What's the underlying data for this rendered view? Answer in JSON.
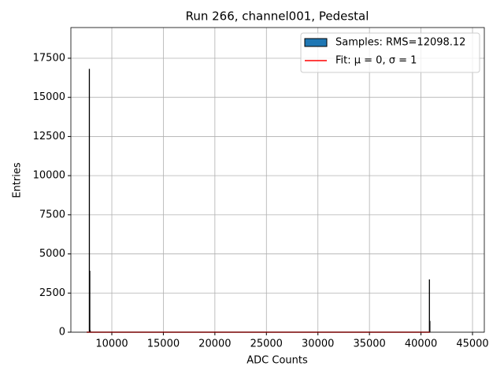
{
  "chart_data": {
    "type": "histogram",
    "title": "Run 266, channel001, Pedestal",
    "xlabel": "ADC Counts",
    "ylabel": "Entries",
    "bins": [
      7800,
      7840,
      7880,
      7920,
      40800,
      40840,
      40880,
      40920
    ],
    "counts": [
      16800,
      3900,
      100,
      0,
      3350,
      700,
      0
    ],
    "series_name": "Samples: RMS=12098.12",
    "color": "#1f77b4",
    "edgecolor": "#000000",
    "fit": {
      "name": "Fit: μ = 0, σ = 1",
      "color": "#ff0000",
      "x": [
        7555,
        40872
      ],
      "values": [
        0,
        0
      ]
    },
    "xlim": [
      6026,
      46146
    ],
    "ylim": [
      0,
      19460
    ],
    "xticks": [
      10000,
      15000,
      20000,
      25000,
      30000,
      35000,
      40000,
      45000
    ],
    "yticks": [
      0,
      2500,
      5000,
      7500,
      10000,
      12500,
      15000,
      17500
    ],
    "grid": true,
    "legend": "upper right"
  }
}
